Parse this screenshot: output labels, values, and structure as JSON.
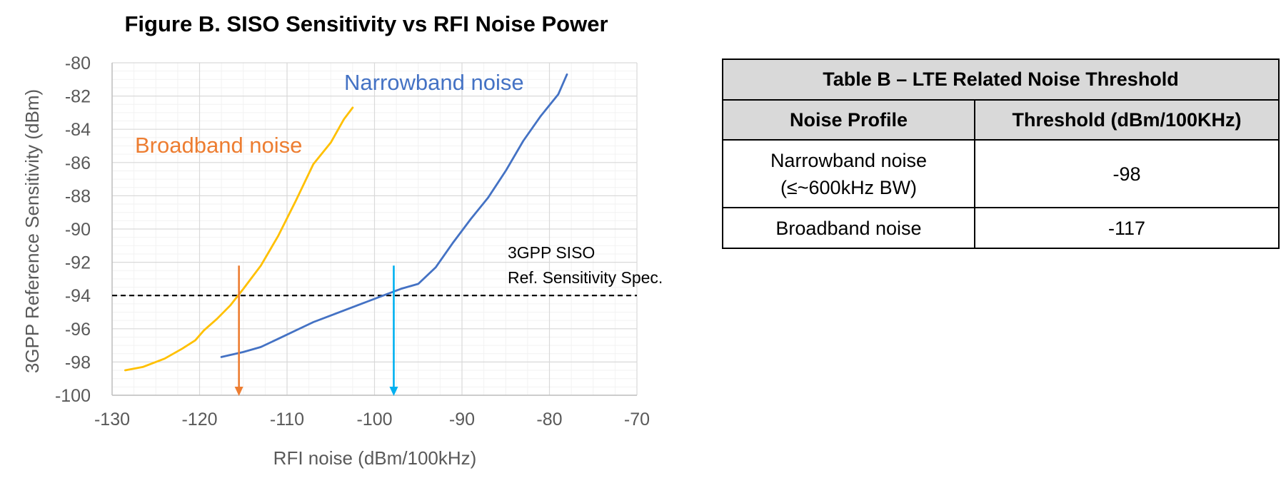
{
  "chart_data": {
    "type": "line",
    "title": "Figure B. SISO Sensitivity vs RFI Noise Power",
    "xlabel": "RFI noise (dBm/100kHz)",
    "ylabel": "3GPP Reference Sensitivity (dBm)",
    "xlim": [
      -130,
      -70
    ],
    "ylim": [
      -100,
      -80
    ],
    "xticks": [
      -130,
      -120,
      -110,
      -100,
      -90,
      -80,
      -70
    ],
    "yticks": [
      -80,
      -82,
      -84,
      -86,
      -88,
      -90,
      -92,
      -94,
      -96,
      -98,
      -100
    ],
    "xtick_labels": [
      "-130",
      "-120",
      "-110",
      "-100",
      "-90",
      "-80",
      "-70"
    ],
    "ytick_labels": [
      "-80",
      "-82",
      "-84",
      "-86",
      "-88",
      "-90",
      "-92",
      "-94",
      "-96",
      "-98",
      "-100"
    ],
    "grid": true,
    "series": [
      {
        "name": "Broadband noise",
        "color": "#ffc000",
        "label_color": "#ed7d31",
        "x": [
          -128.5,
          -126.5,
          -124,
          -122,
          -120.5,
          -119.5,
          -118,
          -116.5,
          -115,
          -113,
          -111,
          -109,
          -107,
          -105,
          -103.5,
          -102.5
        ],
        "y": [
          -98.5,
          -98.3,
          -97.8,
          -97.2,
          -96.7,
          -96.1,
          -95.4,
          -94.6,
          -93.6,
          -92.2,
          -90.4,
          -88.3,
          -86.1,
          -84.8,
          -83.4,
          -82.7
        ]
      },
      {
        "name": "Narrowband noise",
        "color": "#4472c4",
        "label_color": "#4472c4",
        "x": [
          -117.5,
          -115,
          -113,
          -111,
          -109,
          -107,
          -105,
          -103,
          -101,
          -99,
          -97,
          -95,
          -93,
          -91,
          -89,
          -87,
          -85,
          -83,
          -81,
          -79,
          -78
        ],
        "y": [
          -97.7,
          -97.4,
          -97.1,
          -96.6,
          -96.1,
          -95.6,
          -95.2,
          -94.8,
          -94.4,
          -94,
          -93.6,
          -93.3,
          -92.3,
          -90.8,
          -89.4,
          -88.1,
          -86.5,
          -84.7,
          -83.2,
          -81.9,
          -80.7
        ]
      }
    ],
    "reference_line": {
      "y": -94,
      "color": "#000000",
      "style": "dashed"
    },
    "annotation": {
      "line1": "3GPP SISO",
      "line2": "Ref. Sensitivity Spec."
    },
    "threshold_arrows": [
      {
        "x": -115.5,
        "y_from": -92.2,
        "y_to": -100,
        "color": "#ed7d31"
      },
      {
        "x": -97.8,
        "y_from": -92.2,
        "y_to": -100,
        "color": "#00b0f0"
      }
    ]
  },
  "table": {
    "caption": "Table B – LTE Related Noise Threshold",
    "headers": [
      "Noise Profile",
      "Threshold (dBm/100KHz)"
    ],
    "rows": [
      {
        "profile_line1": "Narrowband noise",
        "profile_line2": "(≤~600kHz BW)",
        "threshold": "-98"
      },
      {
        "profile_line1": "Broadband noise",
        "profile_line2": "",
        "threshold": "-117"
      }
    ]
  }
}
